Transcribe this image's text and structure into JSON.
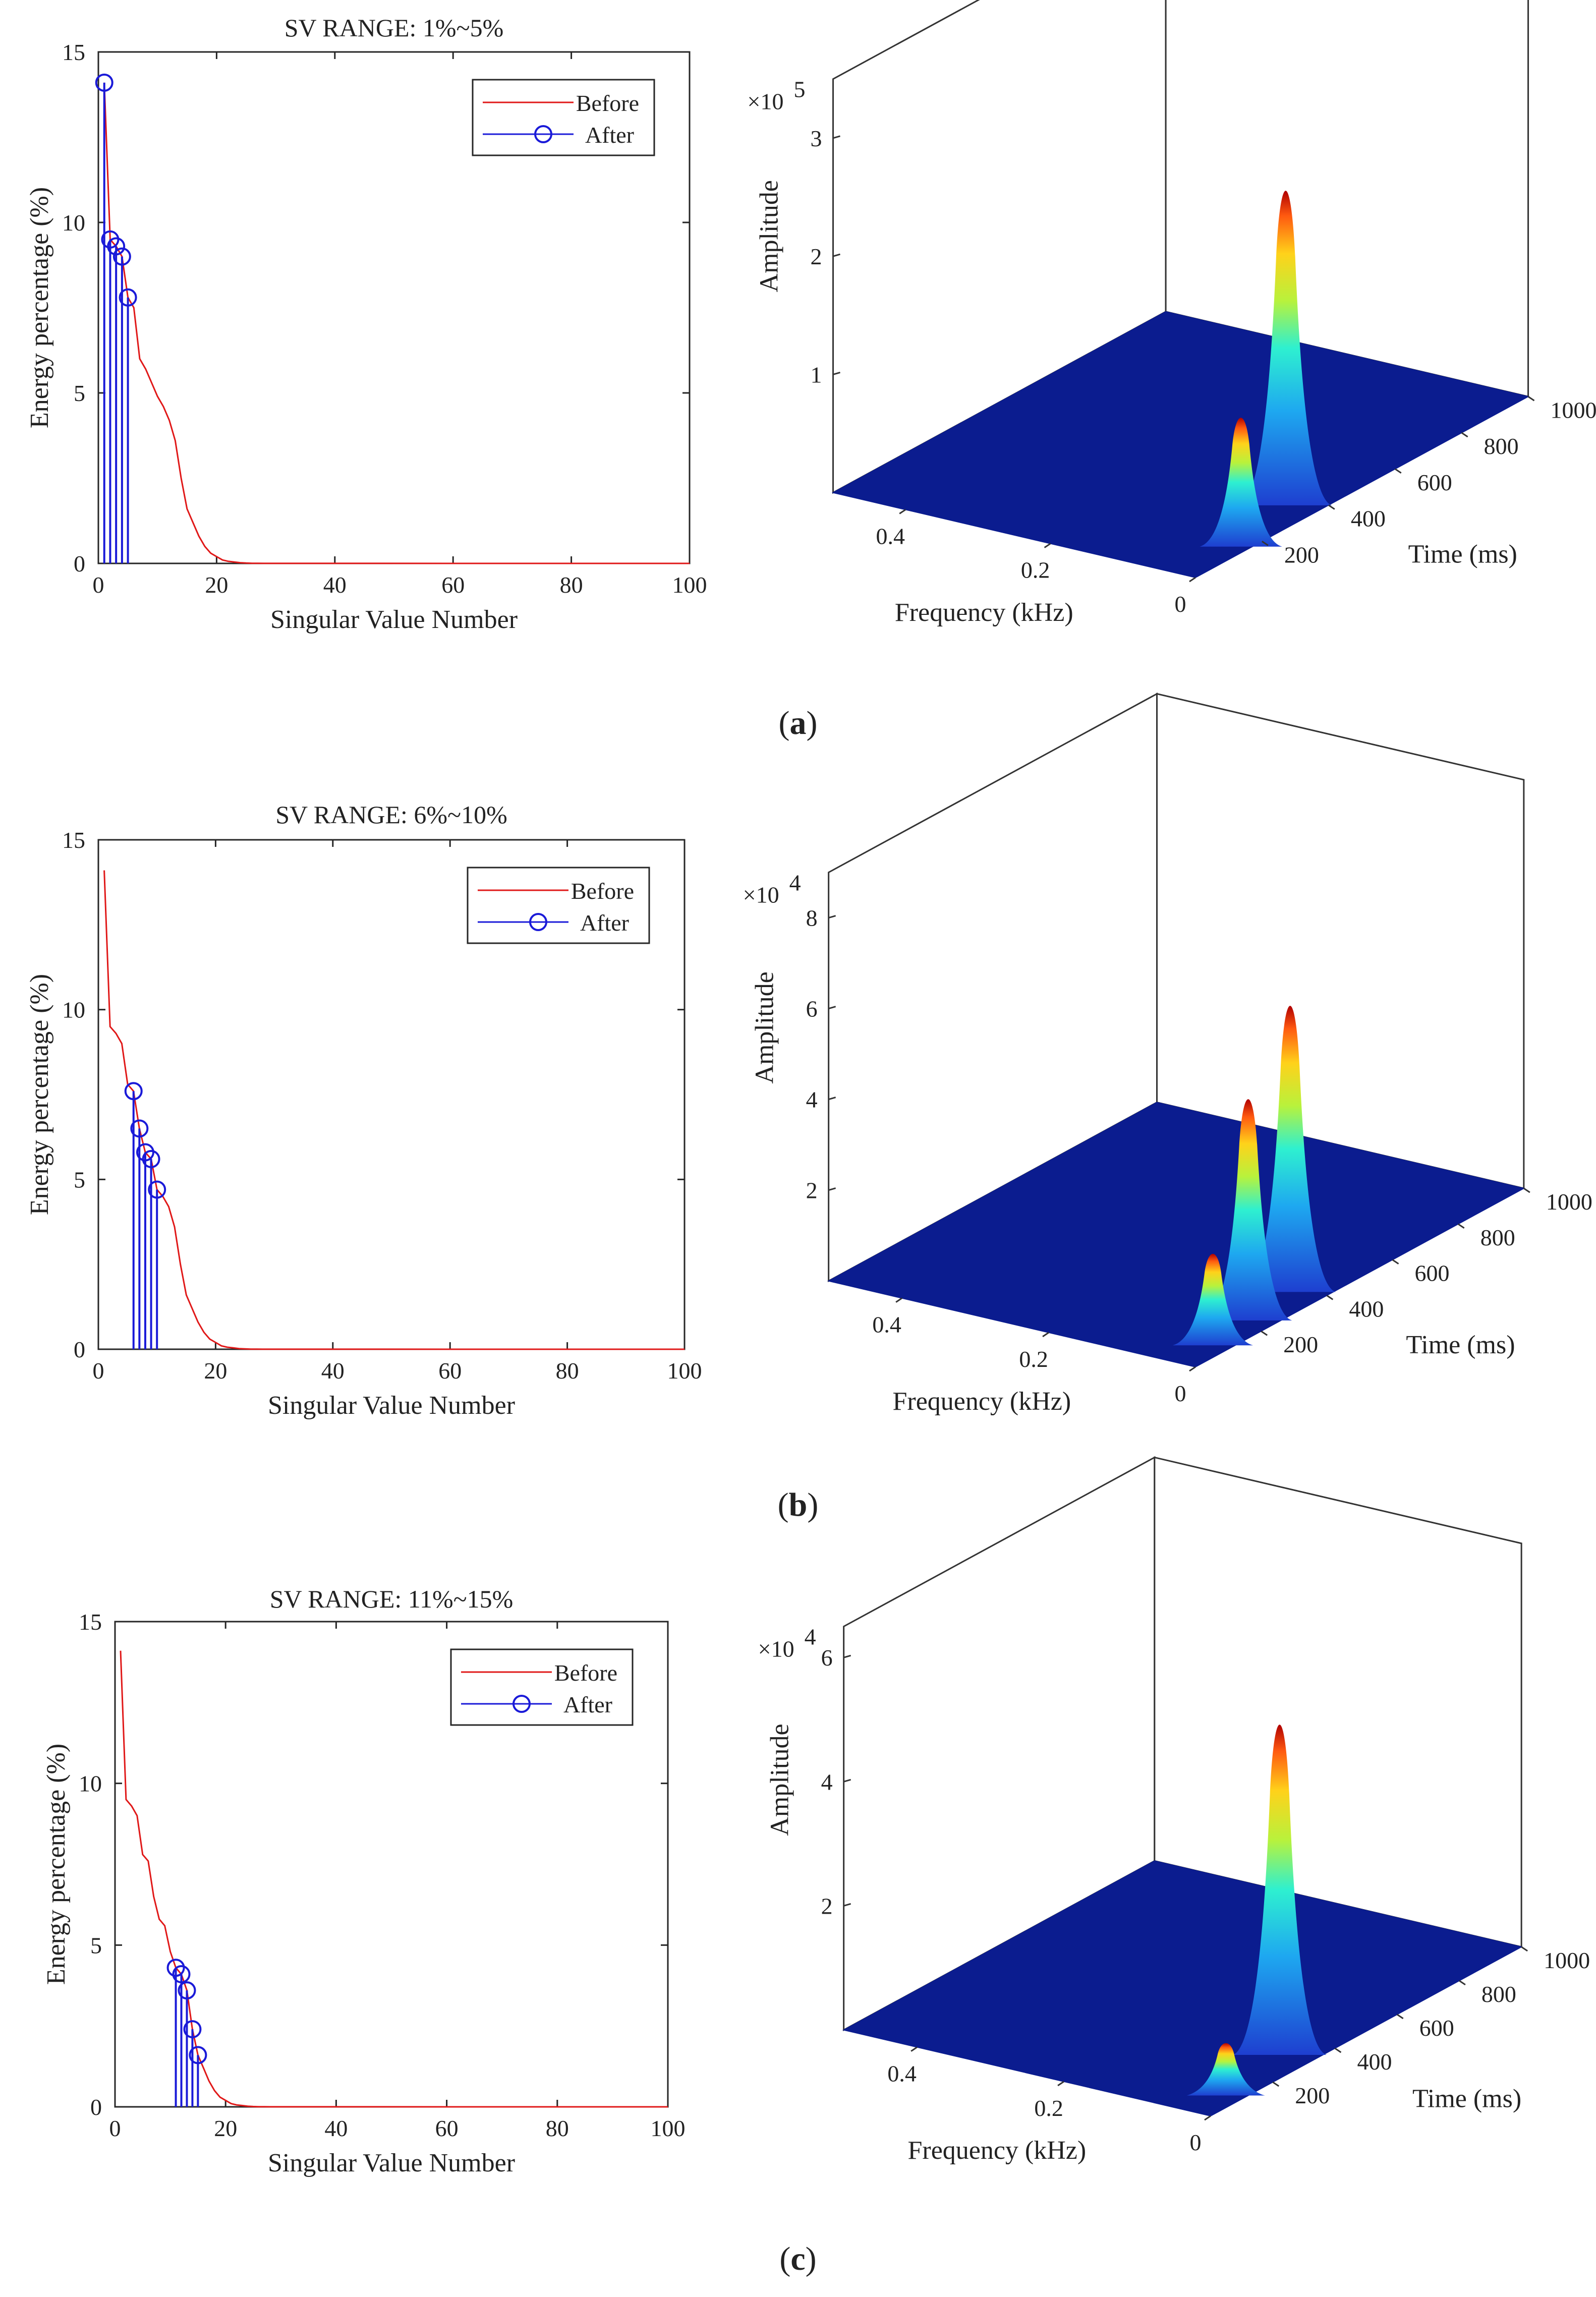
{
  "figure": {
    "panels": [
      {
        "caption": "a",
        "surface_exponent_label": "×10",
        "surface_exponent": "5",
        "surface_z_ticks": [
          "1",
          "2",
          "3"
        ],
        "surface_peaks": [
          {
            "freq": 0.05,
            "time": 380,
            "height": 2.75
          },
          {
            "freq": 0.02,
            "time": 180,
            "height": 1.1
          }
        ]
      },
      {
        "caption": "b",
        "surface_exponent_label": "×10",
        "surface_exponent": "4",
        "surface_z_ticks": [
          "2",
          "4",
          "6",
          "8"
        ],
        "surface_peaks": [
          {
            "freq": 0.05,
            "time": 400,
            "height": 6.5
          },
          {
            "freq": 0.04,
            "time": 250,
            "height": 5.0
          },
          {
            "freq": 0.03,
            "time": 120,
            "height": 2.0
          }
        ]
      },
      {
        "caption": "c",
        "surface_exponent_label": "×10",
        "surface_exponent": "4",
        "surface_z_ticks": [
          "2",
          "4",
          "6"
        ],
        "surface_peaks": [
          {
            "freq": 0.05,
            "time": 340,
            "height": 5.5
          },
          {
            "freq": 0.03,
            "time": 120,
            "height": 0.8
          }
        ]
      }
    ],
    "surface_labels": {
      "zlabel": "Amplitude",
      "freq_label": "Frequency (kHz)",
      "time_label": "Time (ms)",
      "freq_ticks": [
        "0.4",
        "0.2",
        "0"
      ],
      "time_ticks": [
        "200",
        "400",
        "600",
        "800",
        "1000"
      ]
    }
  },
  "chart_data": [
    {
      "type": "line",
      "title": "SV RANGE: 1%~5%",
      "xlabel": "Singular Value Number",
      "ylabel": "Energy percentage (%)",
      "xlim": [
        0,
        100
      ],
      "ylim": [
        0,
        15
      ],
      "xticks": [
        "0",
        "20",
        "40",
        "60",
        "80",
        "100"
      ],
      "yticks": [
        "0",
        "5",
        "10",
        "15"
      ],
      "legend": [
        "Before",
        "After"
      ],
      "series": [
        {
          "name": "Before",
          "x": [
            1,
            2,
            3,
            4,
            5,
            6,
            7,
            8,
            9,
            10,
            11,
            12,
            13,
            14,
            15,
            16,
            17,
            18,
            19,
            20,
            21,
            22,
            23,
            24,
            25,
            26,
            27,
            28,
            30,
            100
          ],
          "values": [
            14.1,
            9.5,
            9.3,
            9.0,
            7.8,
            7.5,
            6.0,
            5.7,
            5.3,
            4.9,
            4.6,
            4.2,
            3.6,
            2.5,
            1.6,
            1.2,
            0.8,
            0.5,
            0.3,
            0.2,
            0.1,
            0.06,
            0.04,
            0.02,
            0.01,
            0.005,
            0.003,
            0.002,
            0.001,
            0.0
          ]
        },
        {
          "name": "After",
          "x": [
            1,
            2,
            3,
            4,
            5
          ],
          "values": [
            14.1,
            9.5,
            9.3,
            9.0,
            7.8
          ]
        }
      ]
    },
    {
      "type": "line",
      "title": "SV RANGE: 6%~10%",
      "xlabel": "Singular Value Number",
      "ylabel": "Energy percentage (%)",
      "xlim": [
        0,
        100
      ],
      "ylim": [
        0,
        15
      ],
      "xticks": [
        "0",
        "20",
        "40",
        "60",
        "80",
        "100"
      ],
      "yticks": [
        "0",
        "5",
        "10",
        "15"
      ],
      "legend": [
        "Before",
        "After"
      ],
      "series": [
        {
          "name": "Before",
          "x": [
            1,
            2,
            3,
            4,
            5,
            6,
            7,
            8,
            9,
            10,
            11,
            12,
            13,
            14,
            15,
            16,
            17,
            18,
            19,
            20,
            21,
            22,
            23,
            24,
            25,
            26,
            27,
            28,
            30,
            100
          ],
          "values": [
            14.1,
            9.5,
            9.3,
            9.0,
            7.8,
            7.6,
            6.5,
            5.8,
            5.6,
            4.7,
            4.5,
            4.2,
            3.6,
            2.5,
            1.6,
            1.2,
            0.8,
            0.5,
            0.3,
            0.2,
            0.1,
            0.06,
            0.04,
            0.02,
            0.01,
            0.005,
            0.003,
            0.002,
            0.001,
            0.0
          ]
        },
        {
          "name": "After",
          "x": [
            6,
            7,
            8,
            9,
            10
          ],
          "values": [
            7.6,
            6.5,
            5.8,
            5.6,
            4.7
          ]
        }
      ]
    },
    {
      "type": "line",
      "title": "SV RANGE: 11%~15%",
      "xlabel": "Singular Value Number",
      "ylabel": "Energy percentage (%)",
      "xlim": [
        0,
        100
      ],
      "ylim": [
        0,
        15
      ],
      "xticks": [
        "0",
        "20",
        "40",
        "60",
        "80",
        "100"
      ],
      "yticks": [
        "0",
        "5",
        "10",
        "15"
      ],
      "legend": [
        "Before",
        "After"
      ],
      "series": [
        {
          "name": "Before",
          "x": [
            1,
            2,
            3,
            4,
            5,
            6,
            7,
            8,
            9,
            10,
            11,
            12,
            13,
            14,
            15,
            16,
            17,
            18,
            19,
            20,
            21,
            22,
            23,
            24,
            25,
            26,
            27,
            28,
            30,
            100
          ],
          "values": [
            14.1,
            9.5,
            9.3,
            9.0,
            7.8,
            7.6,
            6.5,
            5.8,
            5.6,
            4.8,
            4.3,
            4.1,
            3.6,
            2.4,
            1.6,
            1.2,
            0.8,
            0.5,
            0.3,
            0.2,
            0.1,
            0.06,
            0.04,
            0.02,
            0.01,
            0.005,
            0.003,
            0.002,
            0.001,
            0.0
          ]
        },
        {
          "name": "After",
          "x": [
            11,
            12,
            13,
            14,
            15
          ],
          "values": [
            4.3,
            4.1,
            3.6,
            2.4,
            1.6
          ]
        }
      ]
    }
  ]
}
